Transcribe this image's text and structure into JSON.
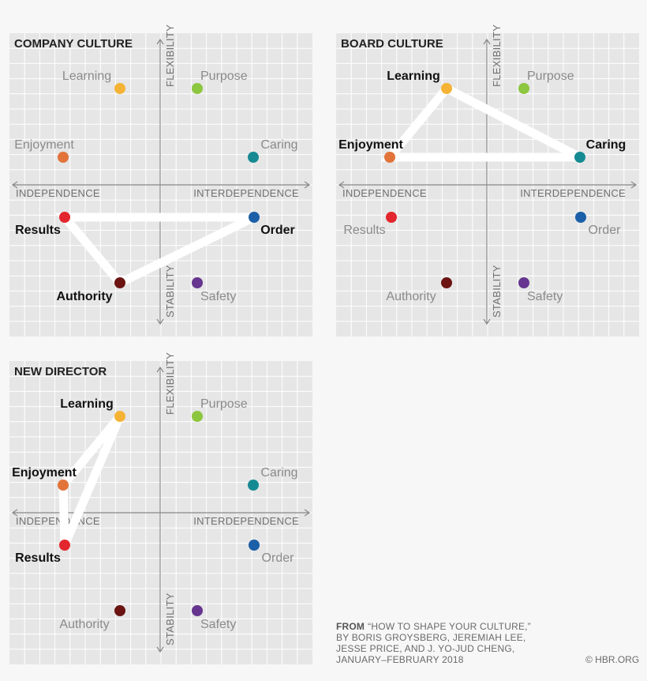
{
  "colors": {
    "panel_bg": "#e6e6e6",
    "grid": "#ffffff",
    "axis": "#888888",
    "path": "#ffffff",
    "label_muted": "#8a8a8a",
    "label_bold": "#111111"
  },
  "axes": {
    "top": "FLEXIBILITY",
    "bottom": "STABILITY",
    "left": "INDEPENDENCE",
    "right": "INTERDEPENDENCE"
  },
  "styles": [
    {
      "key": "learning",
      "label": "Learning",
      "color": "#f5b335"
    },
    {
      "key": "purpose",
      "label": "Purpose",
      "color": "#8dc63f"
    },
    {
      "key": "enjoyment",
      "label": "Enjoyment",
      "color": "#e2743a"
    },
    {
      "key": "caring",
      "label": "Caring",
      "color": "#168a93"
    },
    {
      "key": "results",
      "label": "Results",
      "color": "#e3262d"
    },
    {
      "key": "order",
      "label": "Order",
      "color": "#1a5fa8"
    },
    {
      "key": "authority",
      "label": "Authority",
      "color": "#6b1412"
    },
    {
      "key": "safety",
      "label": "Safety",
      "color": "#65358f"
    }
  ],
  "panels": [
    {
      "title": "COMPANY CULTURE",
      "highlight": [
        "results",
        "order",
        "authority"
      ]
    },
    {
      "title": "BOARD CULTURE",
      "highlight": [
        "learning",
        "caring",
        "enjoyment"
      ]
    },
    {
      "title": "NEW DIRECTOR",
      "highlight": [
        "learning",
        "enjoyment",
        "results"
      ]
    }
  ],
  "source": {
    "lead": "FROM",
    "lines": [
      "“HOW TO SHAPE YOUR CULTURE,”",
      "BY BORIS GROYSBERG, JEREMIAH LEE,",
      "JESSE PRICE, AND J. YO-JUD CHENG,",
      "JANUARY–FEBRUARY 2018"
    ],
    "copyright": "© HBR.ORG"
  }
}
